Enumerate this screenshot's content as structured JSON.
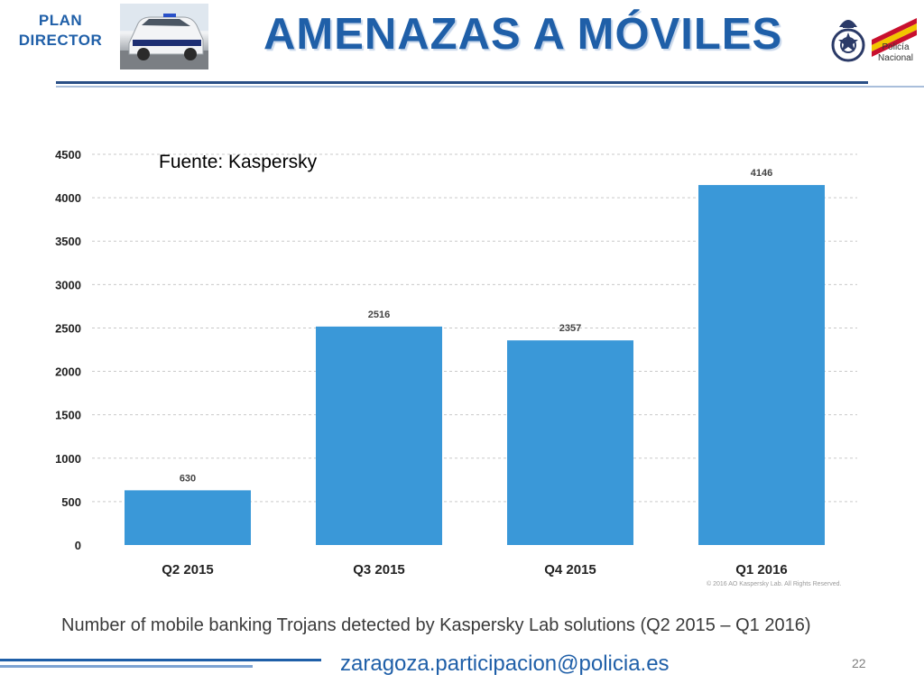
{
  "header": {
    "plan_line1": "PLAN",
    "plan_line2": "DIRECTOR",
    "title": "AMENAZAS A MÓVILES",
    "logo_text_line1": "Policía",
    "logo_text_line2": "Nacional"
  },
  "source_note": "Fuente: Kaspersky",
  "chart_data": {
    "type": "bar",
    "categories": [
      "Q2 2015",
      "Q3 2015",
      "Q4 2015",
      "Q1 2016"
    ],
    "values": [
      630,
      2516,
      2357,
      4146
    ],
    "data_labels": [
      "630",
      "2516",
      "2357",
      "4146"
    ],
    "title": "Number of mobile banking Trojans detected by Kaspersky Lab solutions (Q2 2015 – Q1 2016)",
    "ylim": [
      0,
      4500
    ],
    "y_ticks": [
      0,
      500,
      1000,
      1500,
      2000,
      2500,
      3000,
      3500,
      4000,
      4500
    ],
    "grid": true,
    "bar_color": "#3a98d8",
    "copyright": "© 2016 AO Kaspersky Lab. All Rights Reserved."
  },
  "footer": {
    "email": "zaragoza.participacion@policia.es",
    "page_number": "22",
    "accent_color": "#1f5fa8"
  }
}
